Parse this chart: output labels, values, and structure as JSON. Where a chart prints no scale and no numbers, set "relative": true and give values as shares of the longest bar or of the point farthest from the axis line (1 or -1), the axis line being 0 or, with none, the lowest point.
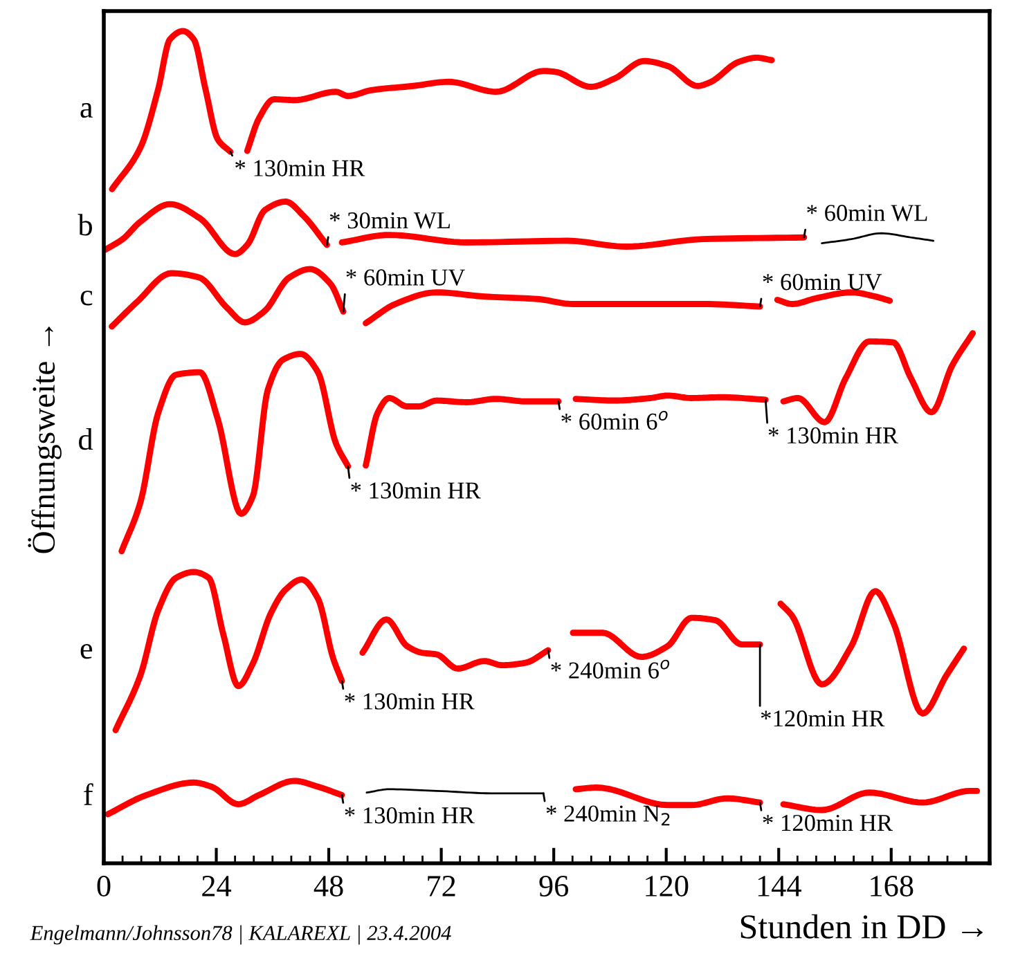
{
  "chart_data": {
    "type": "line",
    "relative": true,
    "xlabel": "Stunden in DD →",
    "ylabel": "Öffnungsweite →",
    "xlim": [
      0,
      189
    ],
    "xticks": [
      0,
      {
        "value": 4,
        "label": null
      },
      {
        "value": 8,
        "label": null
      },
      {
        "value": 12,
        "label": null
      },
      {
        "value": 16,
        "label": null
      },
      {
        "value": 20,
        "label": null
      },
      24,
      {
        "value": 28,
        "label": null
      },
      {
        "value": 32,
        "label": null
      },
      {
        "value": 36,
        "label": null
      },
      {
        "value": 40,
        "label": null
      },
      {
        "value": 44,
        "label": null
      },
      48,
      {
        "value": 52,
        "label": null
      },
      {
        "value": 56,
        "label": null
      },
      {
        "value": 60,
        "label": null
      },
      {
        "value": 64,
        "label": null
      },
      {
        "value": 68,
        "label": null
      },
      72,
      {
        "value": 76,
        "label": null
      },
      {
        "value": 80,
        "label": null
      },
      {
        "value": 84,
        "label": null
      },
      {
        "value": 88,
        "label": null
      },
      {
        "value": 92,
        "label": null
      },
      96,
      {
        "value": 100,
        "label": null
      },
      {
        "value": 104,
        "label": null
      },
      {
        "value": 108,
        "label": null
      },
      {
        "value": 112,
        "label": null
      },
      {
        "value": 116,
        "label": null
      },
      120,
      {
        "value": 124,
        "label": null
      },
      {
        "value": 128,
        "label": null
      },
      {
        "value": 132,
        "label": null
      },
      {
        "value": 136,
        "label": null
      },
      {
        "value": 140,
        "label": null
      },
      144,
      {
        "value": 148,
        "label": null
      },
      {
        "value": 152,
        "label": null
      },
      {
        "value": 156,
        "label": null
      },
      {
        "value": 160,
        "label": null
      },
      {
        "value": 164,
        "label": null
      },
      168,
      {
        "value": 172,
        "label": null
      },
      {
        "value": 176,
        "label": null
      },
      {
        "value": 180,
        "label": null
      },
      {
        "value": 184,
        "label": null
      }
    ],
    "grid": false,
    "legend": false,
    "series": [
      {
        "name": "a",
        "color": "#ff0000",
        "x": [
          1.75,
          7.82,
          11.6,
          14.1,
          16.9,
          19.2,
          21.7,
          24.3,
          27.0,
          28.8,
          30.6,
          33.1,
          36.3,
          40.7,
          49.5,
          52.1,
          57.1,
          66.0,
          73.6,
          83.7,
          93.8,
          96.3,
          103.9,
          109.0,
          115.3,
          120.3,
          126.7,
          129.2,
          135.5,
          139.3,
          142.5
        ],
        "values": [
          0.81,
          0.86,
          0.93,
          0.99,
          1.0,
          0.99,
          0.93,
          0.87,
          0.855,
          null,
          0.856,
          0.895,
          0.918,
          0.917,
          0.927,
          0.922,
          0.929,
          0.934,
          0.939,
          0.927,
          0.952,
          0.951,
          0.933,
          0.943,
          0.964,
          0.958,
          0.934,
          0.938,
          0.963,
          0.968,
          0.965
        ]
      },
      {
        "name": "b",
        "color": "#ff0000",
        "x": [
          0.24,
          4.03,
          7.82,
          14.1,
          20.5,
          28.0,
          30.6,
          34.4,
          38.8,
          42.6,
          47.6,
          49.2,
          50.8,
          60.9,
          77.4,
          98.8,
          111.5,
          127.9,
          149.4
        ],
        "values": [
          0.737,
          0.75,
          0.771,
          0.792,
          0.775,
          0.732,
          0.743,
          0.785,
          0.795,
          0.778,
          0.743,
          null,
          0.746,
          0.755,
          0.746,
          0.748,
          0.741,
          0.75,
          0.752
        ]
      },
      {
        "color": "#000000",
        "x": [
          153.2,
          159.5,
          165.9,
          172.2,
          177.0
        ],
        "values": [
          0.745,
          0.75,
          0.757,
          0.752,
          0.748
        ]
      },
      {
        "name": "c",
        "color": "#ff0000",
        "x": [
          1.7,
          7.0,
          14.4,
          20.3,
          26.2,
          30.1,
          34.2,
          39.6,
          44.0,
          48.4,
          51.1,
          53.5,
          55.9,
          62.2,
          71.0,
          81.2,
          92.5,
          100.1,
          115.3,
          127.9,
          140.0,
          142.0,
          143.7,
          146.9,
          152.0,
          159.5,
          164.6,
          167.7
        ],
        "values": [
          0.645,
          0.674,
          0.709,
          0.704,
          0.668,
          0.65,
          0.663,
          0.704,
          0.714,
          0.696,
          0.663,
          null,
          0.649,
          0.672,
          0.686,
          0.681,
          0.678,
          0.672,
          0.672,
          0.672,
          0.669,
          null,
          0.677,
          0.672,
          0.679,
          0.686,
          0.681,
          0.676
        ]
      },
      {
        "name": "d",
        "color": "#ff0000",
        "x": [
          3.8,
          7.82,
          11.6,
          15.4,
          20.5,
          24.3,
          29.3,
          31.8,
          35.0,
          38.2,
          42.0,
          45.7,
          49.5,
          52.1,
          54.0,
          55.9,
          58.4,
          60.9,
          64.7,
          67.2,
          71.0,
          77.4,
          83.7,
          90.0,
          97.0,
          98.8,
          100.7,
          109.0,
          116.6,
          120.3,
          125.4,
          131.7,
          141.2,
          143.0,
          145.0,
          148.1,
          153.8,
          158.3,
          163.3,
          168.4,
          172.2,
          176.6,
          181.0,
          185.4
        ],
        "values": [
          0.375,
          0.434,
          0.541,
          0.587,
          0.59,
          0.534,
          0.42,
          0.441,
          0.569,
          0.605,
          0.612,
          0.59,
          0.505,
          0.477,
          null,
          0.478,
          0.541,
          0.559,
          0.549,
          0.549,
          0.556,
          0.554,
          0.558,
          0.555,
          0.555,
          null,
          0.558,
          0.556,
          0.559,
          0.562,
          0.559,
          0.56,
          0.557,
          null,
          0.555,
          0.559,
          0.53,
          0.583,
          0.627,
          0.626,
          0.583,
          0.542,
          0.598,
          0.637
        ]
      },
      {
        "name": "e",
        "color": "#ff0000",
        "x": [
          2.51,
          7.82,
          11.6,
          15.4,
          19.2,
          22.4,
          25.5,
          28.7,
          31.8,
          35.6,
          38.8,
          42.2,
          45.7,
          48.9,
          50.8,
          53.0,
          55.2,
          60.3,
          64.7,
          67.9,
          71.0,
          75.5,
          81.2,
          85.0,
          90.0,
          94.8,
          97.5,
          100.1,
          106.4,
          114.7,
          120.3,
          125.4,
          130.5,
          136.1,
          140.0,
          142.2,
          144.4,
          146.9,
          153.2,
          159.5,
          164.6,
          168.4,
          174.7,
          179.8,
          183.5
        ],
        "values": [
          0.16,
          0.226,
          0.304,
          0.343,
          0.35,
          0.343,
          0.275,
          0.213,
          0.24,
          0.3,
          0.329,
          0.341,
          0.318,
          0.247,
          0.219,
          null,
          0.253,
          0.293,
          0.261,
          0.253,
          0.251,
          0.234,
          0.243,
          0.238,
          0.241,
          0.256,
          null,
          0.277,
          0.277,
          0.248,
          0.261,
          0.295,
          0.292,
          0.263,
          0.263,
          null,
          0.312,
          0.297,
          0.215,
          0.261,
          0.327,
          0.29,
          0.18,
          0.226,
          0.258
        ]
      },
      {
        "name": "f",
        "color": "#ff0000",
        "x": [
          0.87,
          9.1,
          19.2,
          23.0,
          28.7,
          33.1,
          40.7,
          45.7,
          50.8,
          75.0,
          100.7,
          105.2,
          120.3,
          125.4,
          133.0,
          140.0,
          142.5,
          145.0,
          153.2,
          163.3,
          174.7,
          184.8,
          186.3
        ],
        "values": [
          0.059,
          0.082,
          0.097,
          0.092,
          0.071,
          0.082,
          0.099,
          0.092,
          0.082,
          null,
          0.089,
          0.091,
          0.07,
          0.07,
          0.078,
          0.073,
          null,
          0.071,
          0.064,
          0.085,
          0.073,
          0.087,
          0.087
        ]
      },
      {
        "color": "#000000",
        "x": [
          56.1,
          60.9,
          71.0,
          83.7,
          93.8
        ],
        "values": [
          0.085,
          0.089,
          0.087,
          0.084,
          0.084
        ]
      }
    ],
    "annotations": [
      {
        "text": "* 130min HR",
        "x": 27.0,
        "y": 0.855
      },
      {
        "text": "* 30min WL",
        "x": 47.6,
        "y": 0.743
      },
      {
        "text": "* 60min WL",
        "x": 149.4,
        "y": 0.752
      },
      {
        "text": "* 60min UV",
        "x": 51.1,
        "y": 0.663
      },
      {
        "text": "* 60min UV",
        "x": 140.0,
        "y": 0.669
      },
      {
        "text": "* 130min HR",
        "x": 52.1,
        "y": 0.477
      },
      {
        "text": "* 60min 6$^{o}$",
        "x": 97.0,
        "y": 0.555
      },
      {
        "text": "* 130min HR",
        "x": 141.2,
        "y": 0.557
      },
      {
        "text": "* 130min HR",
        "x": 50.8,
        "y": 0.219
      },
      {
        "text": "* 240min 6$^{o}$",
        "x": 94.8,
        "y": 0.256
      },
      {
        "text": "*120min HR",
        "x": 140.0,
        "y": 0.263
      },
      {
        "text": "* 130min HR",
        "x": 50.8,
        "y": 0.082
      },
      {
        "text": "* 240min N$_{2}$",
        "x": 93.8,
        "y": 0.084
      },
      {
        "text": "* 120min HR",
        "x": 140.0,
        "y": 0.073
      },
      "Engelmann/Johnsson78 | KALAREXL | 23.4.2004"
    ]
  }
}
